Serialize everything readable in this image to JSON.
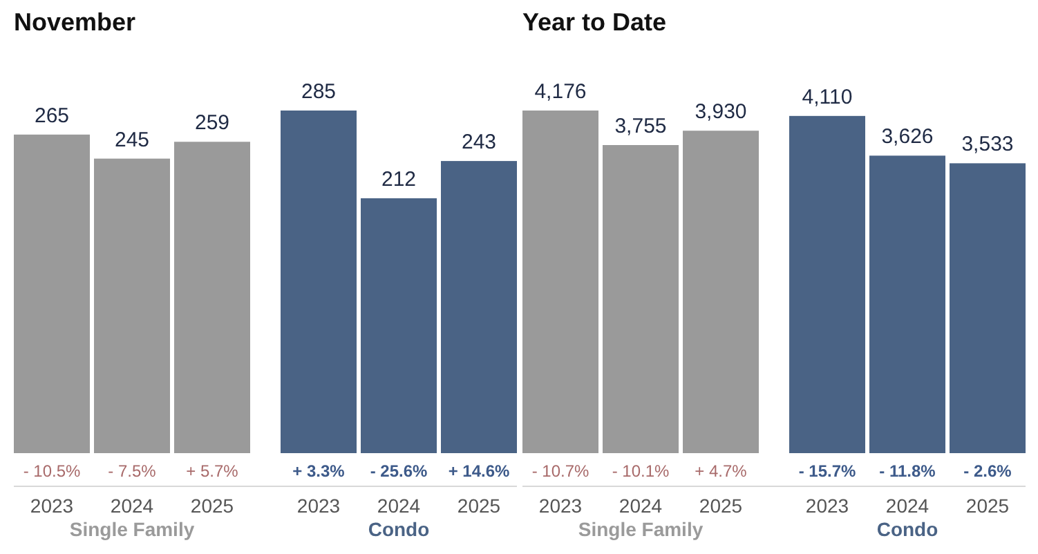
{
  "chart_data": [
    {
      "type": "bar",
      "title": "November",
      "categories": [
        "2023",
        "2024",
        "2025",
        "2023",
        "2024",
        "2025"
      ],
      "data_labels": true,
      "series": [
        {
          "name": "Single Family",
          "color": "#9a9a9a",
          "values": [
            265,
            245,
            259,
            null,
            null,
            null
          ]
        },
        {
          "name": "Condo",
          "color": "#4a6385",
          "values": [
            null,
            null,
            null,
            285,
            212,
            243
          ]
        }
      ],
      "annotations": [
        "- 10.5%",
        "- 7.5%",
        "+ 5.7%",
        "+ 3.3%",
        "- 25.6%",
        "+ 14.6%"
      ]
    },
    {
      "type": "bar",
      "title": "Year to Date",
      "categories": [
        "2023",
        "2024",
        "2025",
        "2023",
        "2024",
        "2025"
      ],
      "series": [
        {
          "name": "Single Family",
          "color": "#9a9a9a",
          "values": [
            4176,
            3755,
            3930,
            null,
            null,
            null
          ],
          "value_labels": [
            "4,176",
            "3,755",
            "3,930",
            null,
            null,
            null
          ]
        },
        {
          "name": "Condo",
          "color": "#4a6385",
          "values": [
            null,
            null,
            null,
            4110,
            3626,
            3533
          ],
          "value_labels": [
            null,
            null,
            null,
            "4,110",
            "3,626",
            "3,533"
          ]
        }
      ],
      "annotations": [
        "- 10.7%",
        "- 10.1%",
        "+ 4.7%",
        "- 15.7%",
        "- 11.8%",
        "- 2.6%"
      ]
    }
  ]
}
